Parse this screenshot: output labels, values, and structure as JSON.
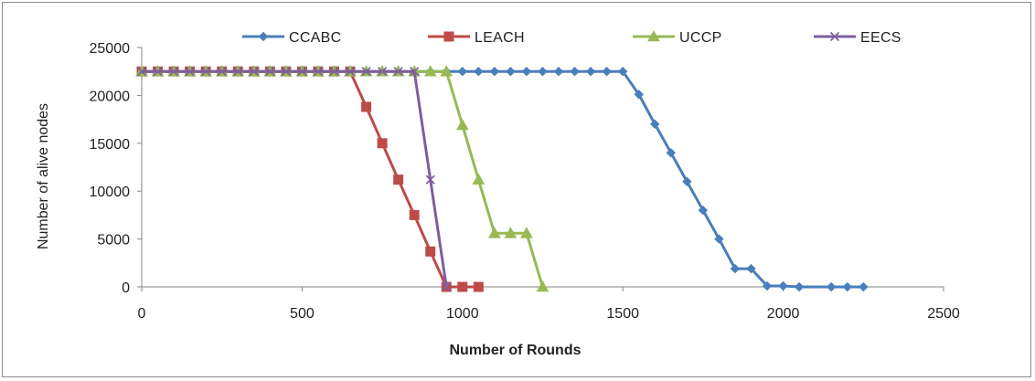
{
  "chart_data": {
    "type": "line",
    "title": "",
    "xlabel": "Number of Rounds",
    "ylabel": "Number of alive nodes",
    "xlim": [
      0,
      2500
    ],
    "ylim": [
      0,
      25000
    ],
    "xticks": [
      "0",
      "500",
      "1000",
      "1500",
      "2000",
      "2500"
    ],
    "yticks": [
      "0",
      "5000",
      "10000",
      "15000",
      "20000",
      "25000"
    ],
    "grid": false,
    "legend_position": "top",
    "series": [
      {
        "name": "CCABC",
        "color": "#4a7ebb",
        "marker": "diamond",
        "points": [
          [
            0,
            22500
          ],
          [
            50,
            22500
          ],
          [
            100,
            22500
          ],
          [
            150,
            22500
          ],
          [
            200,
            22500
          ],
          [
            250,
            22500
          ],
          [
            300,
            22500
          ],
          [
            350,
            22500
          ],
          [
            400,
            22500
          ],
          [
            450,
            22500
          ],
          [
            500,
            22500
          ],
          [
            550,
            22500
          ],
          [
            600,
            22500
          ],
          [
            650,
            22500
          ],
          [
            700,
            22500
          ],
          [
            750,
            22500
          ],
          [
            800,
            22500
          ],
          [
            850,
            22500
          ],
          [
            900,
            22500
          ],
          [
            950,
            22500
          ],
          [
            1000,
            22500
          ],
          [
            1050,
            22500
          ],
          [
            1100,
            22500
          ],
          [
            1150,
            22500
          ],
          [
            1200,
            22500
          ],
          [
            1250,
            22500
          ],
          [
            1300,
            22500
          ],
          [
            1350,
            22500
          ],
          [
            1400,
            22500
          ],
          [
            1450,
            22500
          ],
          [
            1500,
            22500
          ],
          [
            1550,
            20100
          ],
          [
            1600,
            17000
          ],
          [
            1650,
            14000
          ],
          [
            1700,
            11000
          ],
          [
            1750,
            8000
          ],
          [
            1800,
            5000
          ],
          [
            1850,
            1900
          ],
          [
            1900,
            1900
          ],
          [
            1950,
            100
          ],
          [
            2000,
            100
          ],
          [
            2050,
            0
          ],
          [
            2150,
            0
          ],
          [
            2200,
            0
          ],
          [
            2250,
            0
          ]
        ]
      },
      {
        "name": "LEACH",
        "color": "#be4b48",
        "marker": "square",
        "points": [
          [
            0,
            22500
          ],
          [
            50,
            22500
          ],
          [
            100,
            22500
          ],
          [
            150,
            22500
          ],
          [
            200,
            22500
          ],
          [
            250,
            22500
          ],
          [
            300,
            22500
          ],
          [
            350,
            22500
          ],
          [
            400,
            22500
          ],
          [
            450,
            22500
          ],
          [
            500,
            22500
          ],
          [
            550,
            22500
          ],
          [
            600,
            22500
          ],
          [
            650,
            22500
          ],
          [
            700,
            18800
          ],
          [
            750,
            15000
          ],
          [
            800,
            11200
          ],
          [
            850,
            7500
          ],
          [
            900,
            3700
          ],
          [
            950,
            0
          ],
          [
            1000,
            0
          ],
          [
            1050,
            0
          ]
        ]
      },
      {
        "name": "UCCP",
        "color": "#98b954",
        "marker": "triangle",
        "points": [
          [
            0,
            22500
          ],
          [
            50,
            22500
          ],
          [
            100,
            22500
          ],
          [
            150,
            22500
          ],
          [
            200,
            22500
          ],
          [
            250,
            22500
          ],
          [
            300,
            22500
          ],
          [
            350,
            22500
          ],
          [
            400,
            22500
          ],
          [
            450,
            22500
          ],
          [
            500,
            22500
          ],
          [
            550,
            22500
          ],
          [
            600,
            22500
          ],
          [
            650,
            22500
          ],
          [
            700,
            22500
          ],
          [
            750,
            22500
          ],
          [
            800,
            22500
          ],
          [
            850,
            22500
          ],
          [
            900,
            22500
          ],
          [
            950,
            22500
          ],
          [
            1000,
            16900
          ],
          [
            1050,
            11200
          ],
          [
            1100,
            5600
          ],
          [
            1150,
            5600
          ],
          [
            1200,
            5600
          ],
          [
            1250,
            0
          ]
        ]
      },
      {
        "name": "EECS",
        "color": "#7d5fa0",
        "marker": "x",
        "points": [
          [
            0,
            22500
          ],
          [
            50,
            22500
          ],
          [
            100,
            22500
          ],
          [
            150,
            22500
          ],
          [
            200,
            22500
          ],
          [
            250,
            22500
          ],
          [
            300,
            22500
          ],
          [
            350,
            22500
          ],
          [
            400,
            22500
          ],
          [
            450,
            22500
          ],
          [
            500,
            22500
          ],
          [
            550,
            22500
          ],
          [
            600,
            22500
          ],
          [
            650,
            22500
          ],
          [
            700,
            22500
          ],
          [
            750,
            22500
          ],
          [
            800,
            22500
          ],
          [
            850,
            22500
          ],
          [
            900,
            11200
          ],
          [
            950,
            0
          ]
        ]
      }
    ]
  }
}
